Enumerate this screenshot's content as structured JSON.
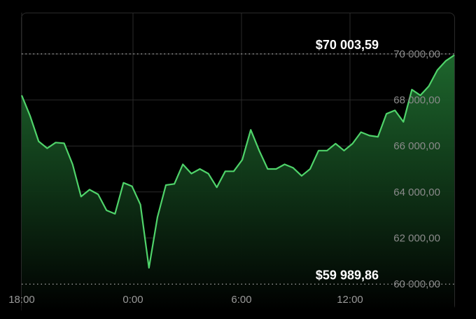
{
  "chart_data": {
    "type": "area",
    "title": "",
    "xlabel": "",
    "ylabel": "",
    "ylim": [
      60000,
      70000
    ],
    "y_ticks": [
      "60 000,00",
      "62 000,00",
      "64 000,00",
      "66 000,00",
      "68 000,00",
      "70 000,00"
    ],
    "x_ticks": [
      "18:00",
      "0:00",
      "6:00",
      "12:00"
    ],
    "reference_lines": [
      {
        "label": "$70 003,59",
        "value": 70003.59
      },
      {
        "label": "$59 989,86",
        "value": 59989.86
      }
    ],
    "grid": true,
    "colors": {
      "line": "#4fd36a",
      "fill_top": "#1f6b2f",
      "fill_bottom": "#000000",
      "grid": "#2a2a2a"
    },
    "series": [
      {
        "values": [
          68200,
          67300,
          66200,
          65900,
          66150,
          66120,
          65200,
          63800,
          64100,
          63900,
          63200,
          63050,
          64400,
          64250,
          63450,
          60700,
          62900,
          64300,
          64350,
          65200,
          64800,
          65000,
          64800,
          64200,
          64900,
          64900,
          65400,
          66700,
          65800,
          65000,
          65000,
          65200,
          65050,
          64700,
          65000,
          65800,
          65800,
          66100,
          65800,
          66100,
          66600,
          66450,
          66400,
          67400,
          67550,
          67050,
          68450,
          68200,
          68600,
          69300,
          69700,
          69950
        ]
      }
    ]
  }
}
